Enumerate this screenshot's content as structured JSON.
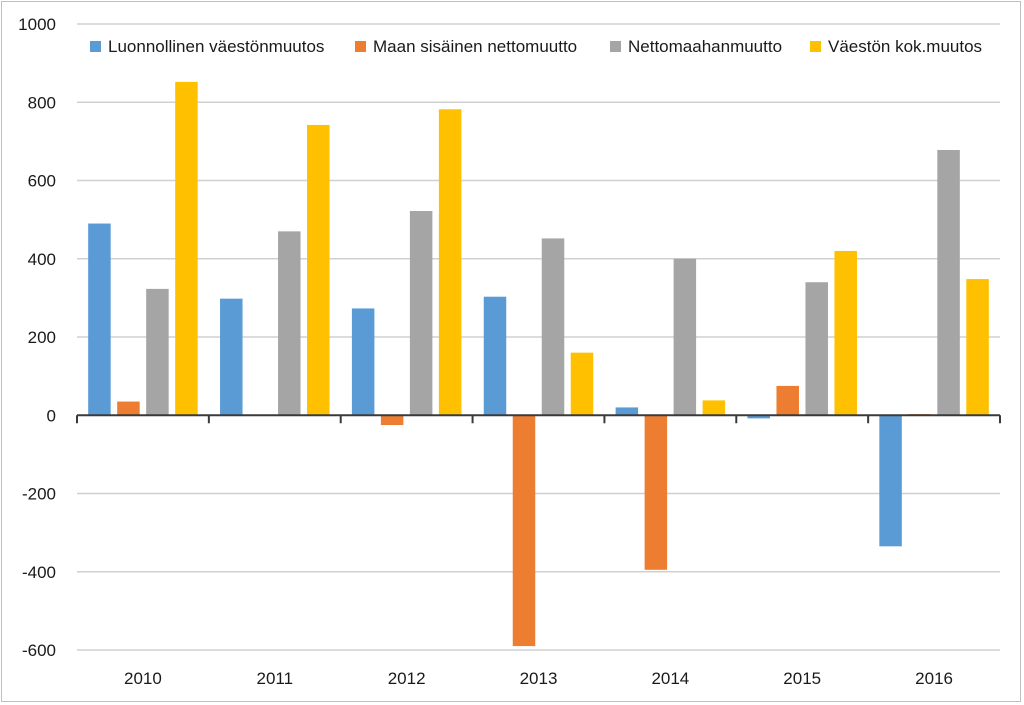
{
  "chart_data": {
    "type": "bar",
    "title": "",
    "xlabel": "",
    "ylabel": "",
    "categories": [
      "2010",
      "2011",
      "2012",
      "2013",
      "2014",
      "2015",
      "2016"
    ],
    "ylim": [
      -600,
      1000
    ],
    "yticks": [
      1000,
      800,
      600,
      400,
      200,
      0,
      -200,
      -400,
      -600
    ],
    "grid": true,
    "legend_position": "top",
    "series": [
      {
        "name": "Luonnollinen väestönmuutos",
        "color": "#5B9BD5",
        "values": [
          490,
          298,
          273,
          303,
          20,
          -8,
          -335
        ]
      },
      {
        "name": "Maan sisäinen nettomuutto",
        "color": "#ED7D31",
        "values": [
          35,
          0,
          -25,
          -590,
          -395,
          75,
          3
        ]
      },
      {
        "name": "Nettomaahanmuutto",
        "color": "#A5A5A5",
        "values": [
          323,
          470,
          522,
          452,
          400,
          340,
          678
        ]
      },
      {
        "name": "Väestön kok.muutos",
        "color": "#FFC000",
        "values": [
          852,
          742,
          782,
          160,
          38,
          420,
          348
        ]
      }
    ]
  }
}
